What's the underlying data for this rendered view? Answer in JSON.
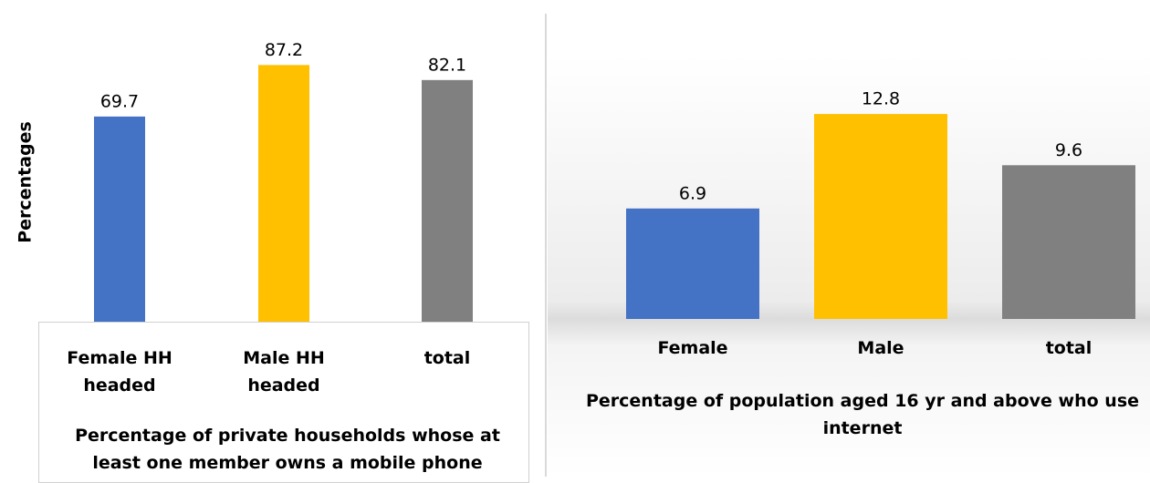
{
  "chart_data": [
    {
      "type": "bar",
      "title": "Percentage of private households whose at least one member owns a mobile phone",
      "y_label": "Percentages",
      "categories": [
        "Female HH headed",
        "Male HH headed",
        "total"
      ],
      "values": [
        69.7,
        87.2,
        82.1
      ],
      "colors": [
        "#4472c4",
        "#ffc000",
        "#808080"
      ],
      "ylim": [
        0,
        100
      ]
    },
    {
      "type": "bar",
      "title": "Percentage of population aged 16 yr and above who use internet",
      "categories": [
        "Female",
        "Male",
        "total"
      ],
      "values": [
        6.9,
        12.8,
        9.6
      ],
      "colors": [
        "#4472c4",
        "#ffc000",
        "#808080"
      ],
      "ylim": [
        0,
        14
      ]
    }
  ]
}
